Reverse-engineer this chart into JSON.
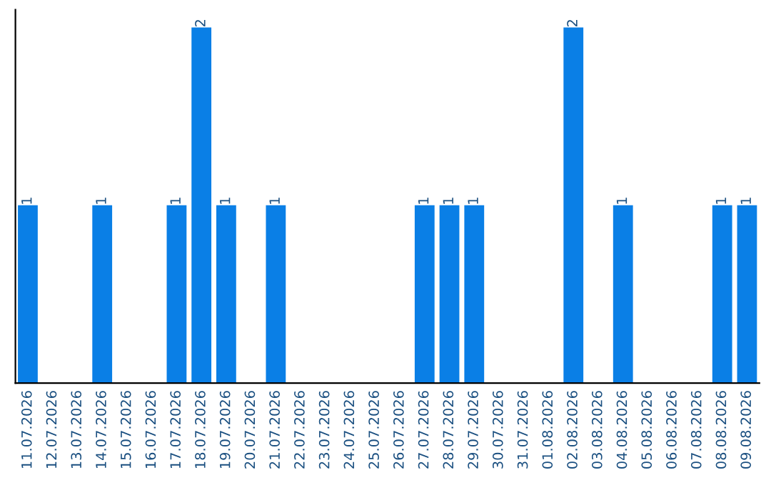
{
  "chart_data": {
    "type": "bar",
    "categories": [
      "11.07.2026",
      "12.07.2026",
      "13.07.2026",
      "14.07.2026",
      "15.07.2026",
      "16.07.2026",
      "17.07.2026",
      "18.07.2026",
      "19.07.2026",
      "20.07.2026",
      "21.07.2026",
      "22.07.2026",
      "23.07.2026",
      "24.07.2026",
      "25.07.2026",
      "26.07.2026",
      "27.07.2026",
      "28.07.2026",
      "29.07.2026",
      "30.07.2026",
      "31.07.2026",
      "01.08.2026",
      "02.08.2026",
      "03.08.2026",
      "04.08.2026",
      "05.08.2026",
      "06.08.2026",
      "07.08.2026",
      "08.08.2026",
      "09.08.2026"
    ],
    "values": [
      1,
      0,
      0,
      1,
      0,
      0,
      1,
      2,
      1,
      0,
      1,
      0,
      0,
      0,
      0,
      0,
      1,
      1,
      1,
      0,
      0,
      0,
      2,
      0,
      1,
      0,
      0,
      0,
      1,
      1
    ],
    "value_labels": [
      "1",
      null,
      null,
      "1",
      null,
      null,
      "1",
      "2",
      "1",
      null,
      "1",
      null,
      null,
      null,
      null,
      null,
      "1",
      "1",
      "1",
      null,
      null,
      null,
      "2",
      null,
      "1",
      null,
      null,
      null,
      "1",
      "1"
    ],
    "color": "#0a7fe6",
    "tick_labels": "x",
    "grid": false,
    "legend": false
  }
}
